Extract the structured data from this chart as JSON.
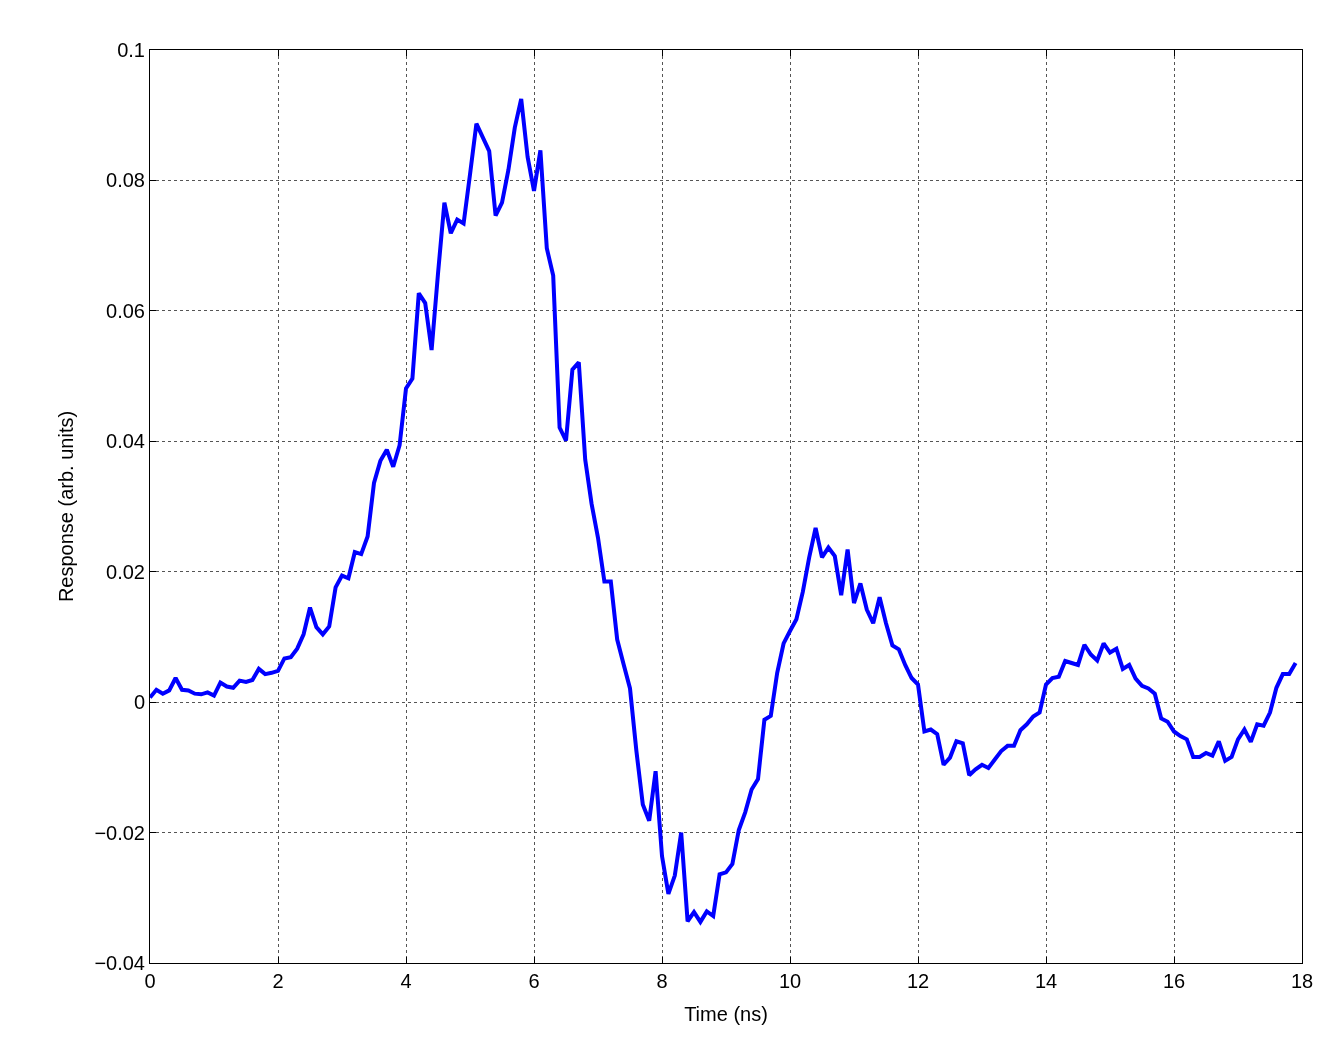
{
  "chart_data": {
    "type": "line",
    "xlabel": "Time (ns)",
    "ylabel": "Response (arb. units)",
    "xlim": [
      0,
      18
    ],
    "xticks": [
      0,
      2,
      4,
      6,
      8,
      10,
      12,
      14,
      16,
      18
    ],
    "ylim": [
      -0.04,
      0.1
    ],
    "yticks": [
      {
        "value": -0.04,
        "label": "−0.04"
      },
      {
        "value": -0.02,
        "label": "−0.02"
      },
      0,
      0.02,
      0.04,
      0.06,
      0.08,
      0.1
    ],
    "grid": true,
    "marker": "none",
    "line_style": "solid",
    "series": [
      {
        "color": "#0000ff",
        "x": [
          0,
          0.1,
          0.2,
          0.3,
          0.4,
          0.5,
          0.6,
          0.7,
          0.8,
          0.9,
          1,
          1.1,
          1.2,
          1.3,
          1.4,
          1.5,
          1.6,
          1.7,
          1.8,
          1.9,
          2,
          2.1,
          2.2,
          2.3,
          2.4,
          2.5,
          2.6,
          2.7,
          2.8,
          2.9,
          3,
          3.1,
          3.2,
          3.3,
          3.4,
          3.5,
          3.6,
          3.7,
          3.8,
          3.9,
          4,
          4.1,
          4.2,
          4.3,
          4.4,
          4.5,
          4.6,
          4.7,
          4.8,
          4.9,
          5,
          5.1,
          5.2,
          5.3,
          5.4,
          5.5,
          5.6,
          5.7,
          5.8,
          5.9,
          6,
          6.1,
          6.2,
          6.3,
          6.4,
          6.5,
          6.6,
          6.7,
          6.8,
          6.9,
          7,
          7.1,
          7.2,
          7.3,
          7.4,
          7.5,
          7.6,
          7.7,
          7.8,
          7.9,
          8,
          8.1,
          8.2,
          8.3,
          8.4,
          8.5,
          8.6,
          8.7,
          8.8,
          8.9,
          9,
          9.1,
          9.2,
          9.3,
          9.4,
          9.5,
          9.6,
          9.7,
          9.8,
          9.9,
          10,
          10.1,
          10.2,
          10.3,
          10.4,
          10.5,
          10.6,
          10.7,
          10.8,
          10.9,
          11,
          11.1,
          11.2,
          11.3,
          11.4,
          11.5,
          11.6,
          11.7,
          11.8,
          11.9,
          12,
          12.1,
          12.2,
          12.3,
          12.4,
          12.5,
          12.6,
          12.7,
          12.8,
          12.9,
          13,
          13.1,
          13.2,
          13.3,
          13.4,
          13.5,
          13.6,
          13.7,
          13.8,
          13.9,
          14,
          14.1,
          14.2,
          14.3,
          14.4,
          14.5,
          14.6,
          14.7,
          14.8,
          14.9,
          15,
          15.1,
          15.2,
          15.3,
          15.4,
          15.5,
          15.6,
          15.7,
          15.8,
          15.9,
          16,
          16.1,
          16.2,
          16.3,
          16.4,
          16.5,
          16.6,
          16.7,
          16.8,
          16.9,
          17,
          17.1,
          17.2,
          17.3,
          17.4,
          17.5,
          17.6,
          17.7,
          17.8,
          17.9
        ],
        "values": [
          0.0007,
          0.0019,
          0.0013,
          0.0018,
          0.0037,
          0.0019,
          0.0018,
          0.0013,
          0.0012,
          0.0015,
          0.001,
          0.003,
          0.0024,
          0.0022,
          0.0033,
          0.0031,
          0.0034,
          0.0051,
          0.0043,
          0.0045,
          0.0048,
          0.0067,
          0.0069,
          0.0082,
          0.0104,
          0.0145,
          0.0115,
          0.0104,
          0.0116,
          0.0176,
          0.0194,
          0.019,
          0.023,
          0.0227,
          0.0254,
          0.0336,
          0.037,
          0.0387,
          0.0361,
          0.0394,
          0.0481,
          0.0496,
          0.0627,
          0.0612,
          0.054,
          0.0657,
          0.0766,
          0.0719,
          0.074,
          0.0734,
          0.0809,
          0.0887,
          0.0866,
          0.0845,
          0.0746,
          0.0766,
          0.0816,
          0.0881,
          0.0925,
          0.0836,
          0.0784,
          0.0846,
          0.0696,
          0.0654,
          0.0421,
          0.0401,
          0.051,
          0.0521,
          0.0372,
          0.0304,
          0.0252,
          0.0185,
          0.0185,
          0.0096,
          0.0058,
          0.0021,
          -0.0075,
          -0.0157,
          -0.0182,
          -0.0106,
          -0.0236,
          -0.0294,
          -0.0266,
          -0.02,
          -0.0336,
          -0.0322,
          -0.0337,
          -0.0321,
          -0.0328,
          -0.0264,
          -0.0261,
          -0.0248,
          -0.0196,
          -0.0169,
          -0.0134,
          -0.0118,
          -0.0027,
          -0.0021,
          0.0045,
          0.009,
          0.0109,
          0.0127,
          0.0169,
          0.0222,
          0.0267,
          0.0222,
          0.0237,
          0.0224,
          0.0164,
          0.0234,
          0.0152,
          0.0182,
          0.0142,
          0.0121,
          0.0161,
          0.0121,
          0.0087,
          0.0081,
          0.0057,
          0.0037,
          0.0027,
          -0.0045,
          -0.0042,
          -0.0049,
          -0.0096,
          -0.0085,
          -0.006,
          -0.0063,
          -0.0112,
          -0.0103,
          -0.0096,
          -0.0101,
          -0.0088,
          -0.0075,
          -0.0067,
          -0.0067,
          -0.0043,
          -0.0034,
          -0.0022,
          -0.0016,
          0.0027,
          0.0037,
          0.0039,
          0.0063,
          0.006,
          0.0057,
          0.0088,
          0.0073,
          0.0064,
          0.009,
          0.0076,
          0.0082,
          0.0051,
          0.0057,
          0.0036,
          0.0025,
          0.0021,
          0.0013,
          -0.0025,
          -0.003,
          -0.0045,
          -0.0052,
          -0.0057,
          -0.0084,
          -0.0084,
          -0.0078,
          -0.0082,
          -0.006,
          -0.009,
          -0.0084,
          -0.0057,
          -0.0042,
          -0.0061,
          -0.0034,
          -0.0036,
          -0.0016,
          0.0022,
          0.0043,
          0.0043,
          0.006
        ]
      }
    ]
  }
}
